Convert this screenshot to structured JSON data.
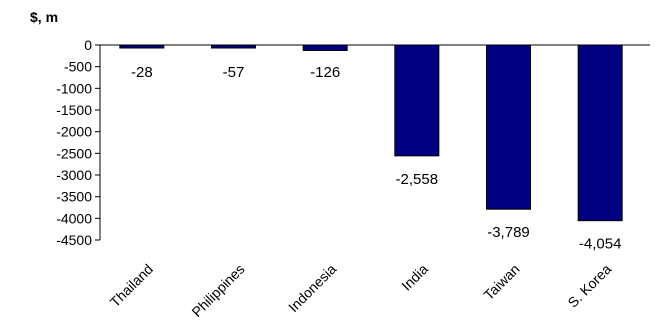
{
  "chart_data": {
    "type": "bar",
    "unit_label": "$, m",
    "categories": [
      "Thailand",
      "Philippines",
      "Indonesia",
      "India",
      "Taiwan",
      "S. Korea"
    ],
    "values": [
      -28,
      -57,
      -126,
      -2558,
      -3789,
      -4054
    ],
    "data_labels": [
      "-28",
      "-57",
      "-126",
      "-2,558",
      "-3,789",
      "-4,054"
    ],
    "ylim": [
      -4500,
      0
    ],
    "yticks": [
      0,
      -500,
      -1000,
      -1500,
      -2000,
      -2500,
      -3000,
      -3500,
      -4000,
      -4500
    ],
    "grid": false,
    "legend": "none",
    "bar_color": "#000080",
    "bar_edge_color": "#000000"
  }
}
